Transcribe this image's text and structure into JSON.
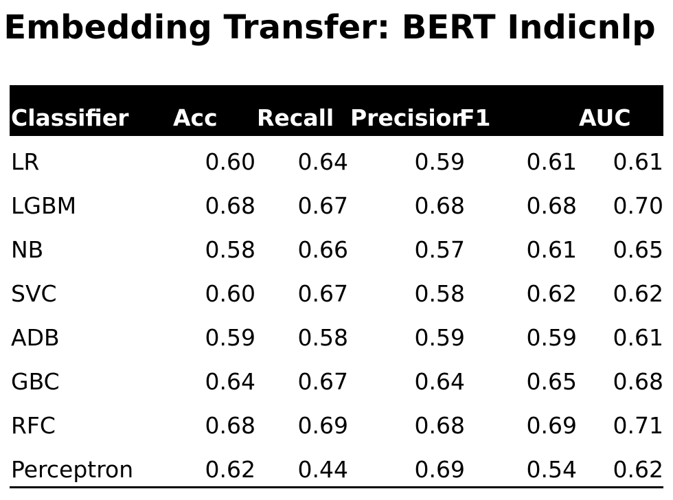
{
  "title": "Embedding Transfer: BERT Indicnlp",
  "table": {
    "columns": [
      "Classifier",
      "Acc",
      "Recall",
      "Precision",
      "F1",
      "AUC"
    ],
    "rows": [
      [
        "LR",
        "0.60",
        "0.64",
        "0.59",
        "0.61",
        "0.61"
      ],
      [
        "LGBM",
        "0.68",
        "0.67",
        "0.68",
        "0.68",
        "0.70"
      ],
      [
        "NB",
        "0.58",
        "0.66",
        "0.57",
        "0.61",
        "0.65"
      ],
      [
        "SVC",
        "0.60",
        "0.67",
        "0.58",
        "0.62",
        "0.62"
      ],
      [
        "ADB",
        "0.59",
        "0.58",
        "0.59",
        "0.59",
        "0.61"
      ],
      [
        "GBC",
        "0.64",
        "0.67",
        "0.64",
        "0.65",
        "0.68"
      ],
      [
        "RFC",
        "0.68",
        "0.69",
        "0.68",
        "0.69",
        "0.71"
      ],
      [
        "Perceptron",
        "0.62",
        "0.44",
        "0.69",
        "0.54",
        "0.62"
      ]
    ]
  },
  "colors": {
    "header_bg": "#000000",
    "header_text": "#ffffff",
    "text": "#000000"
  }
}
